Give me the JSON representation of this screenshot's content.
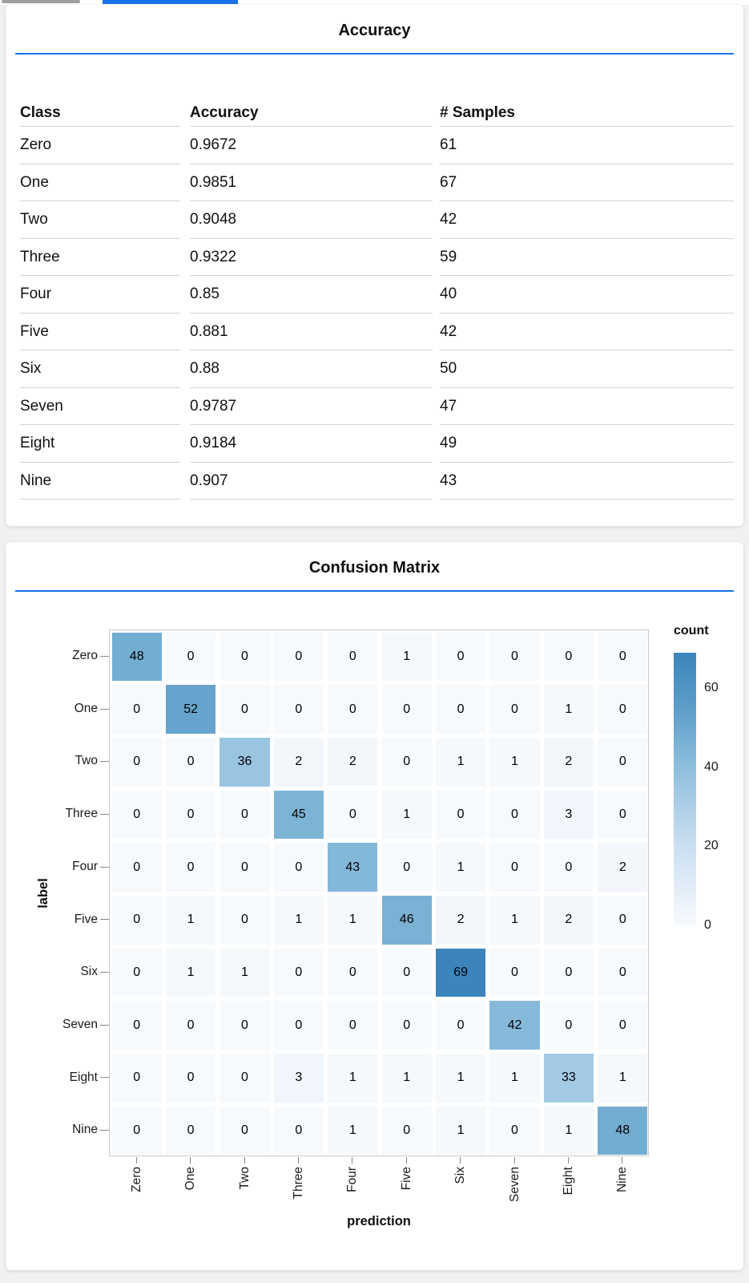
{
  "page": {
    "background": "#f1f1f1",
    "accent_color": "#1a73e8",
    "top_bars": {
      "scrollbar_color": "#9e9e9e",
      "indicator_color": "#1a73e8"
    }
  },
  "accuracy_card": {
    "title": "Accuracy",
    "table": {
      "headers": [
        "Class",
        "Accuracy",
        "# Samples"
      ],
      "rows": [
        {
          "class": "Zero",
          "accuracy": "0.9672",
          "samples": "61"
        },
        {
          "class": "One",
          "accuracy": "0.9851",
          "samples": "67"
        },
        {
          "class": "Two",
          "accuracy": "0.9048",
          "samples": "42"
        },
        {
          "class": "Three",
          "accuracy": "0.9322",
          "samples": "59"
        },
        {
          "class": "Four",
          "accuracy": "0.85",
          "samples": "40"
        },
        {
          "class": "Five",
          "accuracy": "0.881",
          "samples": "42"
        },
        {
          "class": "Six",
          "accuracy": "0.88",
          "samples": "50"
        },
        {
          "class": "Seven",
          "accuracy": "0.9787",
          "samples": "47"
        },
        {
          "class": "Eight",
          "accuracy": "0.9184",
          "samples": "49"
        },
        {
          "class": "Nine",
          "accuracy": "0.907",
          "samples": "43"
        }
      ]
    }
  },
  "confusion_card": {
    "title": "Confusion Matrix"
  },
  "chart_data": {
    "type": "heatmap",
    "title": "Confusion Matrix",
    "xlabel": "prediction",
    "ylabel": "label",
    "x_categories": [
      "Zero",
      "One",
      "Two",
      "Three",
      "Four",
      "Five",
      "Six",
      "Seven",
      "Eight",
      "Nine"
    ],
    "y_categories": [
      "Zero",
      "One",
      "Two",
      "Three",
      "Four",
      "Five",
      "Six",
      "Seven",
      "Eight",
      "Nine"
    ],
    "matrix": [
      [
        48,
        0,
        0,
        0,
        0,
        1,
        0,
        0,
        0,
        0
      ],
      [
        0,
        52,
        0,
        0,
        0,
        0,
        0,
        0,
        1,
        0
      ],
      [
        0,
        0,
        36,
        2,
        2,
        0,
        1,
        1,
        2,
        0
      ],
      [
        0,
        0,
        0,
        45,
        0,
        1,
        0,
        0,
        3,
        0
      ],
      [
        0,
        0,
        0,
        0,
        43,
        0,
        1,
        0,
        0,
        2
      ],
      [
        0,
        1,
        0,
        1,
        1,
        46,
        2,
        1,
        2,
        0
      ],
      [
        0,
        1,
        1,
        0,
        0,
        0,
        69,
        0,
        0,
        0
      ],
      [
        0,
        0,
        0,
        0,
        0,
        0,
        0,
        42,
        0,
        0
      ],
      [
        0,
        0,
        0,
        3,
        1,
        1,
        1,
        1,
        33,
        1
      ],
      [
        0,
        0,
        0,
        0,
        1,
        0,
        1,
        0,
        1,
        48
      ]
    ],
    "legend": {
      "title": "count",
      "ticks": [
        60,
        40,
        20,
        0
      ],
      "domain": [
        0,
        69
      ],
      "position": "right"
    },
    "color_scale": {
      "scheme": "blues",
      "stops": [
        [
          0,
          "#f7fafd"
        ],
        [
          20,
          "#cbdff1"
        ],
        [
          40,
          "#8ebfdd"
        ],
        [
          55,
          "#5c9dc9"
        ],
        [
          69,
          "#3b85bc"
        ]
      ]
    },
    "grid": false
  }
}
